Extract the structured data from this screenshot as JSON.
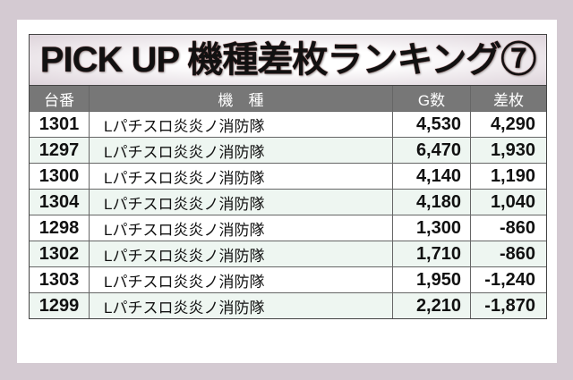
{
  "title": "PICK UP 機種差枚ランキング⑦",
  "headers": [
    "台番",
    "機　種",
    "G数",
    "差枚"
  ],
  "rows": [
    {
      "no": "1301",
      "model": "Lパチスロ炎炎ノ消防隊",
      "games": "4,530",
      "diff": "4,290"
    },
    {
      "no": "1297",
      "model": "Lパチスロ炎炎ノ消防隊",
      "games": "6,470",
      "diff": "1,930"
    },
    {
      "no": "1300",
      "model": "Lパチスロ炎炎ノ消防隊",
      "games": "4,140",
      "diff": "1,190"
    },
    {
      "no": "1304",
      "model": "Lパチスロ炎炎ノ消防隊",
      "games": "4,180",
      "diff": "1,040"
    },
    {
      "no": "1298",
      "model": "Lパチスロ炎炎ノ消防隊",
      "games": "1,300",
      "diff": "-860"
    },
    {
      "no": "1302",
      "model": "Lパチスロ炎炎ノ消防隊",
      "games": "1,710",
      "diff": "-860"
    },
    {
      "no": "1303",
      "model": "Lパチスロ炎炎ノ消防隊",
      "games": "1,950",
      "diff": "-1,240"
    },
    {
      "no": "1299",
      "model": "Lパチスロ炎炎ノ消防隊",
      "games": "2,210",
      "diff": "-1,870"
    }
  ],
  "colors": {
    "background": "#d4cad2",
    "header": "#777777",
    "alt_row": "#eef6f1"
  }
}
